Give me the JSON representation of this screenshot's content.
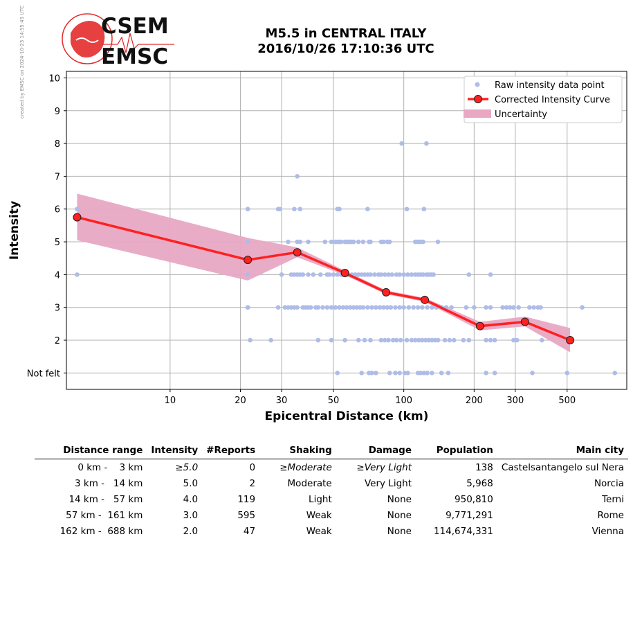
{
  "stamp": "created by EMSC on 2024-10-23 14:55:45 UTC",
  "logo": {
    "line1": "CSEM",
    "line2": "EMSC"
  },
  "title": {
    "line1": "M5.5 in CENTRAL ITALY",
    "line2": "2016/10/26 17:10:36 UTC"
  },
  "colors": {
    "raw": "#aebce8",
    "curve": "#ff2020",
    "marker_edge": "#202020",
    "band": "#e8a8c4",
    "grid": "#b0b0b0",
    "logo_red": "#e32b2b"
  },
  "chart_data": {
    "type": "scatter",
    "xlabel": "Epicentral Distance (km)",
    "ylabel": "Intensity",
    "xscale": "log",
    "xlim": [
      3.6,
      900
    ],
    "ylim": [
      0.5,
      10.2
    ],
    "x_ticks": [
      10,
      20,
      30,
      50,
      100,
      200,
      300,
      500
    ],
    "y_ticks": [
      {
        "v": 1,
        "label": "Not felt"
      },
      {
        "v": 2,
        "label": "2"
      },
      {
        "v": 3,
        "label": "3"
      },
      {
        "v": 4,
        "label": "4"
      },
      {
        "v": 5,
        "label": "5"
      },
      {
        "v": 6,
        "label": "6"
      },
      {
        "v": 7,
        "label": "7"
      },
      {
        "v": 8,
        "label": "8"
      },
      {
        "v": 9,
        "label": "9"
      },
      {
        "v": 10,
        "label": "10"
      }
    ],
    "grid": true,
    "legend_position": "top-right",
    "legend": [
      "Raw intensity data point",
      "Corrected Intensity Curve",
      "Uncertainty"
    ],
    "raw_points": [
      [
        4,
        6
      ],
      [
        4,
        4
      ],
      [
        21.5,
        6
      ],
      [
        21.5,
        5
      ],
      [
        21.5,
        4
      ],
      [
        21.5,
        3
      ],
      [
        22,
        2
      ],
      [
        27,
        2
      ],
      [
        29,
        6
      ],
      [
        29.5,
        6
      ],
      [
        34,
        6
      ],
      [
        36,
        6
      ],
      [
        35,
        7
      ],
      [
        98,
        8
      ],
      [
        125,
        8
      ],
      [
        52,
        6
      ],
      [
        53,
        6
      ],
      [
        70,
        6
      ],
      [
        103,
        6
      ],
      [
        122,
        6
      ],
      [
        32,
        5
      ],
      [
        35,
        5
      ],
      [
        36,
        5
      ],
      [
        39,
        5
      ],
      [
        46,
        5
      ],
      [
        49,
        5
      ],
      [
        51,
        5
      ],
      [
        52,
        5
      ],
      [
        53,
        5
      ],
      [
        54,
        5
      ],
      [
        56,
        5
      ],
      [
        57,
        5
      ],
      [
        58,
        5
      ],
      [
        59,
        5
      ],
      [
        60,
        5
      ],
      [
        61,
        5
      ],
      [
        64,
        5
      ],
      [
        67,
        5
      ],
      [
        71,
        5
      ],
      [
        72,
        5
      ],
      [
        80,
        5
      ],
      [
        82,
        5
      ],
      [
        85,
        5
      ],
      [
        87,
        5
      ],
      [
        112,
        5
      ],
      [
        114,
        5
      ],
      [
        116,
        5
      ],
      [
        118,
        5
      ],
      [
        121,
        5
      ],
      [
        140,
        5
      ],
      [
        30,
        4
      ],
      [
        33,
        4
      ],
      [
        34,
        4
      ],
      [
        35,
        4
      ],
      [
        36,
        4
      ],
      [
        37,
        4
      ],
      [
        39,
        4
      ],
      [
        41,
        4
      ],
      [
        44,
        4
      ],
      [
        47,
        4
      ],
      [
        48,
        4
      ],
      [
        50,
        4
      ],
      [
        52,
        4
      ],
      [
        54,
        4
      ],
      [
        56,
        4
      ],
      [
        58,
        4
      ],
      [
        60,
        4
      ],
      [
        62,
        4
      ],
      [
        64,
        4
      ],
      [
        66,
        4
      ],
      [
        68,
        4
      ],
      [
        70,
        4
      ],
      [
        72,
        4
      ],
      [
        75,
        4
      ],
      [
        78,
        4
      ],
      [
        80,
        4
      ],
      [
        83,
        4
      ],
      [
        86,
        4
      ],
      [
        89,
        4
      ],
      [
        93,
        4
      ],
      [
        96,
        4
      ],
      [
        100,
        4
      ],
      [
        104,
        4
      ],
      [
        108,
        4
      ],
      [
        112,
        4
      ],
      [
        115,
        4
      ],
      [
        118,
        4
      ],
      [
        121,
        4
      ],
      [
        125,
        4
      ],
      [
        128,
        4
      ],
      [
        131,
        4
      ],
      [
        134,
        4
      ],
      [
        190,
        4
      ],
      [
        235,
        4
      ],
      [
        21.5,
        3
      ],
      [
        29,
        3
      ],
      [
        31,
        3
      ],
      [
        32,
        3
      ],
      [
        33,
        3
      ],
      [
        34,
        3
      ],
      [
        35,
        3
      ],
      [
        37,
        3
      ],
      [
        38,
        3
      ],
      [
        39,
        3
      ],
      [
        40,
        3
      ],
      [
        42,
        3
      ],
      [
        43,
        3
      ],
      [
        45,
        3
      ],
      [
        47,
        3
      ],
      [
        49,
        3
      ],
      [
        51,
        3
      ],
      [
        53,
        3
      ],
      [
        55,
        3
      ],
      [
        57,
        3
      ],
      [
        59,
        3
      ],
      [
        61,
        3
      ],
      [
        63,
        3
      ],
      [
        65,
        3
      ],
      [
        67,
        3
      ],
      [
        70,
        3
      ],
      [
        73,
        3
      ],
      [
        76,
        3
      ],
      [
        79,
        3
      ],
      [
        82,
        3
      ],
      [
        85,
        3
      ],
      [
        88,
        3
      ],
      [
        92,
        3
      ],
      [
        96,
        3
      ],
      [
        100,
        3
      ],
      [
        105,
        3
      ],
      [
        110,
        3
      ],
      [
        115,
        3
      ],
      [
        120,
        3
      ],
      [
        126,
        3
      ],
      [
        132,
        3
      ],
      [
        138,
        3
      ],
      [
        145,
        3
      ],
      [
        152,
        3
      ],
      [
        160,
        3
      ],
      [
        185,
        3
      ],
      [
        200,
        3
      ],
      [
        225,
        3
      ],
      [
        235,
        3
      ],
      [
        265,
        3
      ],
      [
        275,
        3
      ],
      [
        285,
        3
      ],
      [
        295,
        3
      ],
      [
        310,
        3
      ],
      [
        345,
        3
      ],
      [
        360,
        3
      ],
      [
        375,
        3
      ],
      [
        385,
        3
      ],
      [
        580,
        3
      ],
      [
        43,
        2
      ],
      [
        49,
        2
      ],
      [
        56,
        2
      ],
      [
        64,
        2
      ],
      [
        68,
        2
      ],
      [
        72,
        2
      ],
      [
        80,
        2
      ],
      [
        83,
        2
      ],
      [
        86,
        2
      ],
      [
        90,
        2
      ],
      [
        93,
        2
      ],
      [
        97,
        2
      ],
      [
        103,
        2
      ],
      [
        108,
        2
      ],
      [
        112,
        2
      ],
      [
        116,
        2
      ],
      [
        120,
        2
      ],
      [
        124,
        2
      ],
      [
        128,
        2
      ],
      [
        132,
        2
      ],
      [
        136,
        2
      ],
      [
        140,
        2
      ],
      [
        150,
        2
      ],
      [
        157,
        2
      ],
      [
        164,
        2
      ],
      [
        180,
        2
      ],
      [
        190,
        2
      ],
      [
        225,
        2
      ],
      [
        235,
        2
      ],
      [
        245,
        2
      ],
      [
        295,
        2
      ],
      [
        305,
        2
      ],
      [
        390,
        2
      ],
      [
        52,
        1
      ],
      [
        66,
        1
      ],
      [
        71,
        1
      ],
      [
        73,
        1
      ],
      [
        76,
        1
      ],
      [
        87,
        1
      ],
      [
        92,
        1
      ],
      [
        96,
        1
      ],
      [
        101,
        1
      ],
      [
        104,
        1
      ],
      [
        115,
        1
      ],
      [
        118,
        1
      ],
      [
        122,
        1
      ],
      [
        126,
        1
      ],
      [
        132,
        1
      ],
      [
        145,
        1
      ],
      [
        155,
        1
      ],
      [
        225,
        1
      ],
      [
        245,
        1
      ],
      [
        355,
        1
      ],
      [
        500,
        1
      ],
      [
        800,
        1
      ]
    ],
    "curve": [
      {
        "x": 4.0,
        "y": 5.75,
        "lo": 5.05,
        "hi": 6.47
      },
      {
        "x": 21.5,
        "y": 4.45,
        "lo": 3.82,
        "hi": 5.12
      },
      {
        "x": 35.0,
        "y": 4.68,
        "lo": 4.53,
        "hi": 4.83
      },
      {
        "x": 56.0,
        "y": 4.05,
        "lo": 3.98,
        "hi": 4.12
      },
      {
        "x": 84.0,
        "y": 3.46,
        "lo": 3.4,
        "hi": 3.52
      },
      {
        "x": 123.0,
        "y": 3.23,
        "lo": 3.17,
        "hi": 3.29
      },
      {
        "x": 212.0,
        "y": 2.43,
        "lo": 2.3,
        "hi": 2.56
      },
      {
        "x": 330.0,
        "y": 2.56,
        "lo": 2.42,
        "hi": 2.72
      },
      {
        "x": 515.0,
        "y": 2.0,
        "lo": 1.63,
        "hi": 2.37
      }
    ]
  },
  "table": {
    "headers": [
      "Distance range",
      "Intensity",
      "#Reports",
      "Shaking",
      "Damage",
      "Population",
      "Main city"
    ],
    "rows": [
      [
        "0 km -    3 km",
        "≥5.0",
        "0",
        "≥Moderate",
        "≥Very Light",
        "138",
        "Castelsantangelo sul Nera"
      ],
      [
        "3 km -   14 km",
        "5.0",
        "2",
        "Moderate",
        "Very Light",
        "5,968",
        "Norcia"
      ],
      [
        "14 km -   57 km",
        "4.0",
        "119",
        "Light",
        "None",
        "950,810",
        "Terni"
      ],
      [
        "57 km -  161 km",
        "3.0",
        "595",
        "Weak",
        "None",
        "9,771,291",
        "Rome"
      ],
      [
        "162 km -  688 km",
        "2.0",
        "47",
        "Weak",
        "None",
        "114,674,331",
        "Vienna"
      ]
    ]
  }
}
